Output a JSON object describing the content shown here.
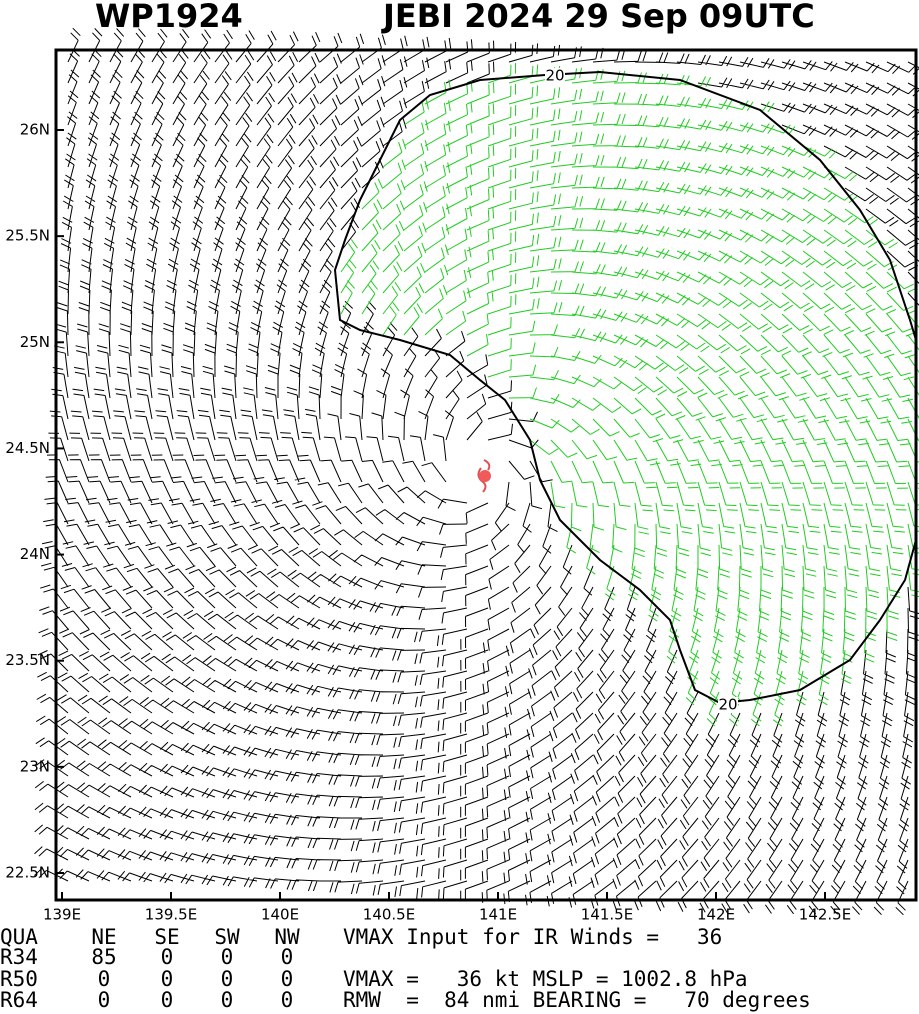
{
  "title_left": "WP1924",
  "title_right": "JEBI 2024 29 Sep 09UTC",
  "xticks": [
    {
      "value": 139,
      "label": "139E"
    },
    {
      "value": 139.5,
      "label": "139.5E"
    },
    {
      "value": 140,
      "label": "140E"
    },
    {
      "value": 140.5,
      "label": "140.5E"
    },
    {
      "value": 141,
      "label": "141E"
    },
    {
      "value": 141.5,
      "label": "141.5E"
    },
    {
      "value": 142,
      "label": "142E"
    },
    {
      "value": 142.5,
      "label": "142.5E"
    }
  ],
  "yticks": [
    {
      "value": 26,
      "label": "26N"
    },
    {
      "value": 25.5,
      "label": "25.5N"
    },
    {
      "value": 25,
      "label": "25N"
    },
    {
      "value": 24.5,
      "label": "24.5N"
    },
    {
      "value": 24,
      "label": "24N"
    },
    {
      "value": 23.5,
      "label": "23.5N"
    },
    {
      "value": 23,
      "label": "23N"
    },
    {
      "value": 22.5,
      "label": "22.5N"
    }
  ],
  "contour_labels": [
    "20",
    "20"
  ],
  "table": {
    "rows": [
      [
        "QUA",
        "NE",
        "SE",
        "SW",
        "NW"
      ],
      [
        "R34",
        "85",
        "0",
        "0",
        "0"
      ],
      [
        "R50",
        "0",
        "0",
        "0",
        "0"
      ],
      [
        "R64",
        "0",
        "0",
        "0",
        "0"
      ]
    ],
    "notes": [
      "VMAX Input for IR Winds =   36",
      "",
      "VMAX =   36 kt MSLP = 1002.8 hPa",
      "RMW  =  84 nmi BEARING =   70 degrees"
    ]
  }
}
